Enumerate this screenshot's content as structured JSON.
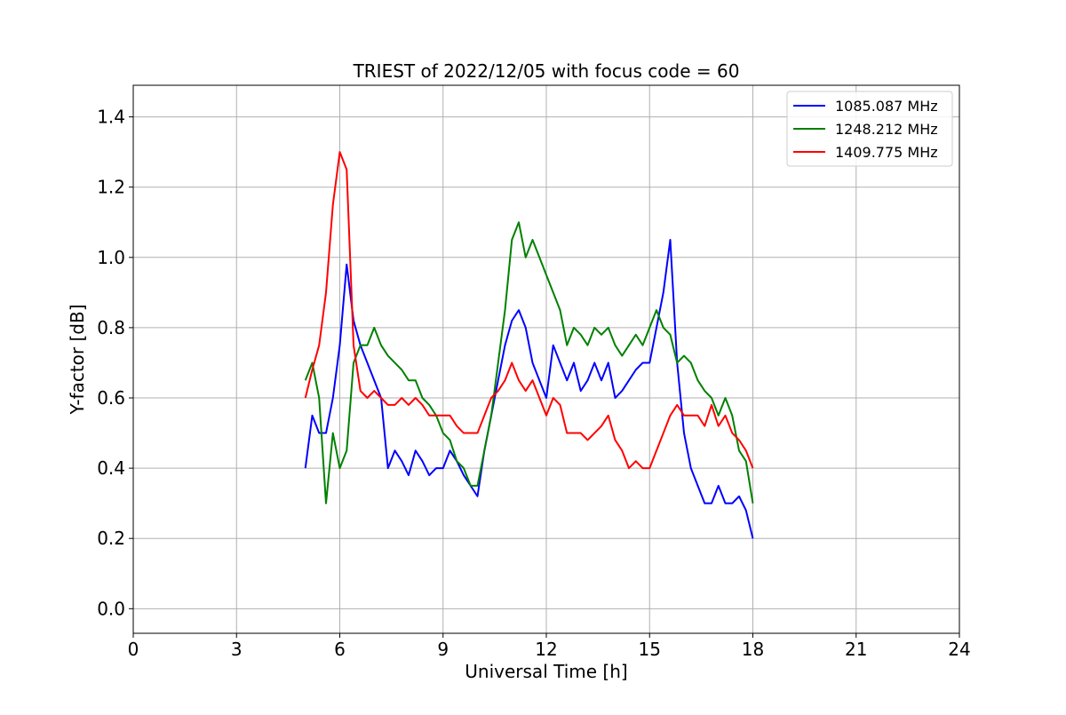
{
  "chart_data": {
    "type": "line",
    "title": "TRIEST of 2022/12/05 with focus code = 60",
    "xlabel": "Universal Time [h]",
    "ylabel": "Y-factor [dB]",
    "xlim": [
      0,
      24
    ],
    "ylim": [
      -0.07,
      1.49
    ],
    "xticks": [
      0,
      3,
      6,
      9,
      12,
      15,
      18,
      21,
      24
    ],
    "yticks": [
      0.0,
      0.2,
      0.4,
      0.6,
      0.8,
      1.0,
      1.2,
      1.4
    ],
    "grid": true,
    "legend_position": "top-right",
    "series": [
      {
        "name": "1085.087 MHz",
        "color": "#0000ff",
        "x": [
          5.0,
          5.2,
          5.4,
          5.6,
          5.8,
          6.0,
          6.2,
          6.4,
          6.6,
          6.8,
          7.0,
          7.2,
          7.4,
          7.6,
          7.8,
          8.0,
          8.2,
          8.4,
          8.6,
          8.8,
          9.0,
          9.2,
          9.4,
          9.6,
          9.8,
          10.0,
          10.2,
          10.4,
          10.6,
          10.8,
          11.0,
          11.2,
          11.4,
          11.6,
          11.8,
          12.0,
          12.2,
          12.4,
          12.6,
          12.8,
          13.0,
          13.2,
          13.4,
          13.6,
          13.8,
          14.0,
          14.2,
          14.4,
          14.6,
          14.8,
          15.0,
          15.2,
          15.4,
          15.6,
          15.8,
          16.0,
          16.2,
          16.4,
          16.6,
          16.8,
          17.0,
          17.2,
          17.4,
          17.6,
          17.8,
          18.0
        ],
        "y": [
          0.4,
          0.55,
          0.5,
          0.5,
          0.6,
          0.75,
          0.98,
          0.82,
          0.75,
          0.7,
          0.65,
          0.6,
          0.4,
          0.45,
          0.42,
          0.38,
          0.45,
          0.42,
          0.38,
          0.4,
          0.4,
          0.45,
          0.42,
          0.38,
          0.35,
          0.32,
          0.45,
          0.55,
          0.65,
          0.75,
          0.82,
          0.85,
          0.8,
          0.7,
          0.65,
          0.6,
          0.75,
          0.7,
          0.65,
          0.7,
          0.62,
          0.65,
          0.7,
          0.65,
          0.7,
          0.6,
          0.62,
          0.65,
          0.68,
          0.7,
          0.7,
          0.8,
          0.9,
          1.05,
          0.7,
          0.5,
          0.4,
          0.35,
          0.3,
          0.3,
          0.35,
          0.3,
          0.3,
          0.32,
          0.28,
          0.2
        ]
      },
      {
        "name": "1248.212 MHz",
        "color": "#008000",
        "x": [
          5.0,
          5.2,
          5.4,
          5.6,
          5.8,
          6.0,
          6.2,
          6.4,
          6.6,
          6.8,
          7.0,
          7.2,
          7.4,
          7.6,
          7.8,
          8.0,
          8.2,
          8.4,
          8.6,
          8.8,
          9.0,
          9.2,
          9.4,
          9.6,
          9.8,
          10.0,
          10.2,
          10.4,
          10.6,
          10.8,
          11.0,
          11.2,
          11.4,
          11.6,
          11.8,
          12.0,
          12.2,
          12.4,
          12.6,
          12.8,
          13.0,
          13.2,
          13.4,
          13.6,
          13.8,
          14.0,
          14.2,
          14.4,
          14.6,
          14.8,
          15.0,
          15.2,
          15.4,
          15.6,
          15.8,
          16.0,
          16.2,
          16.4,
          16.6,
          16.8,
          17.0,
          17.2,
          17.4,
          17.6,
          17.8,
          18.0
        ],
        "y": [
          0.65,
          0.7,
          0.6,
          0.3,
          0.5,
          0.4,
          0.45,
          0.7,
          0.75,
          0.75,
          0.8,
          0.75,
          0.72,
          0.7,
          0.68,
          0.65,
          0.65,
          0.6,
          0.58,
          0.55,
          0.5,
          0.48,
          0.42,
          0.4,
          0.35,
          0.35,
          0.45,
          0.55,
          0.7,
          0.85,
          1.05,
          1.1,
          1.0,
          1.05,
          1.0,
          0.95,
          0.9,
          0.85,
          0.75,
          0.8,
          0.78,
          0.75,
          0.8,
          0.78,
          0.8,
          0.75,
          0.72,
          0.75,
          0.78,
          0.75,
          0.8,
          0.85,
          0.8,
          0.78,
          0.7,
          0.72,
          0.7,
          0.65,
          0.62,
          0.6,
          0.55,
          0.6,
          0.55,
          0.45,
          0.42,
          0.3
        ]
      },
      {
        "name": "1409.775 MHz",
        "color": "#ff0000",
        "x": [
          5.0,
          5.2,
          5.4,
          5.6,
          5.8,
          6.0,
          6.2,
          6.4,
          6.6,
          6.8,
          7.0,
          7.2,
          7.4,
          7.6,
          7.8,
          8.0,
          8.2,
          8.4,
          8.6,
          8.8,
          9.0,
          9.2,
          9.4,
          9.6,
          9.8,
          10.0,
          10.2,
          10.4,
          10.6,
          10.8,
          11.0,
          11.2,
          11.4,
          11.6,
          11.8,
          12.0,
          12.2,
          12.4,
          12.6,
          12.8,
          13.0,
          13.2,
          13.4,
          13.6,
          13.8,
          14.0,
          14.2,
          14.4,
          14.6,
          14.8,
          15.0,
          15.2,
          15.4,
          15.6,
          15.8,
          16.0,
          16.2,
          16.4,
          16.6,
          16.8,
          17.0,
          17.2,
          17.4,
          17.6,
          17.8,
          18.0
        ],
        "y": [
          0.6,
          0.68,
          0.75,
          0.9,
          1.15,
          1.3,
          1.25,
          0.75,
          0.62,
          0.6,
          0.62,
          0.6,
          0.58,
          0.58,
          0.6,
          0.58,
          0.6,
          0.58,
          0.55,
          0.55,
          0.55,
          0.55,
          0.52,
          0.5,
          0.5,
          0.5,
          0.55,
          0.6,
          0.62,
          0.65,
          0.7,
          0.65,
          0.62,
          0.65,
          0.6,
          0.55,
          0.6,
          0.58,
          0.5,
          0.5,
          0.5,
          0.48,
          0.5,
          0.52,
          0.55,
          0.48,
          0.45,
          0.4,
          0.42,
          0.4,
          0.4,
          0.45,
          0.5,
          0.55,
          0.58,
          0.55,
          0.55,
          0.55,
          0.52,
          0.58,
          0.52,
          0.55,
          0.5,
          0.48,
          0.45,
          0.4
        ]
      }
    ]
  }
}
